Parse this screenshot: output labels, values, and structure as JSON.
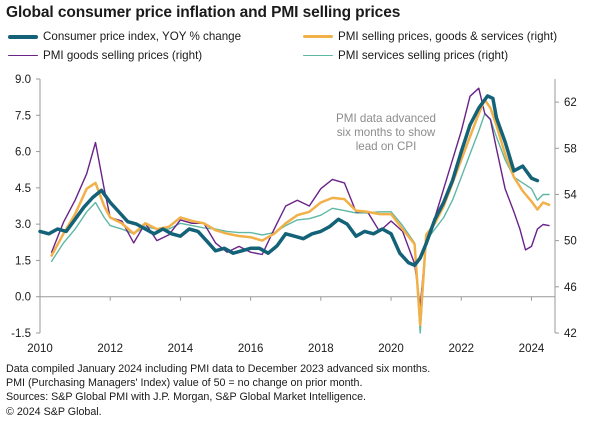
{
  "title": "Global consumer price inflation and PMI selling prices",
  "annotation": [
    "PMI data advanced",
    "six months to show",
    "lead on CPI"
  ],
  "footnotes": [
    "Data compiled January 2024 including PMI data to December 2023 advanced six months.",
    "PMI (Purchasing Managers' Index) value of 50 = no change on prior month.",
    "Sources: S&P Global PMI with J.P. Morgan, S&P Global Market Intelligence.",
    "© 2024 S&P Global."
  ],
  "colors": {
    "cpi": "#136278",
    "pmi_goods_services": "#f2b048",
    "pmi_goods": "#6a2388",
    "pmi_services": "#5fb7a5",
    "text": "#1a1a1a",
    "axis": "#9a9a9a",
    "annotation": "#8c8c8c"
  },
  "chart_data": {
    "type": "line",
    "title": "Global consumer price inflation and PMI selling prices",
    "x_ticks": [
      2010,
      2012,
      2014,
      2016,
      2018,
      2020,
      2022,
      2024
    ],
    "xlim": [
      2010.0,
      2024.67
    ],
    "y_left": {
      "lim": [
        -1.5,
        9.0
      ],
      "ticks": [
        "-1.5",
        "0.0",
        "1.5",
        "3.0",
        "4.5",
        "6.0",
        "7.5",
        "9.0"
      ]
    },
    "y_right": {
      "lim": [
        42,
        64
      ],
      "ticks": [
        "42",
        "46",
        "50",
        "54",
        "58",
        "62"
      ]
    },
    "grid": false,
    "legend_position": "top",
    "series": [
      {
        "name": "Consumer price index, YOY % change",
        "axis": "left",
        "color_key": "cpi",
        "width": 3.5,
        "points": [
          [
            2010.0,
            2.7
          ],
          [
            2010.25,
            2.6
          ],
          [
            2010.5,
            2.8
          ],
          [
            2010.75,
            2.7
          ],
          [
            2011.0,
            3.2
          ],
          [
            2011.25,
            3.7
          ],
          [
            2011.5,
            4.1
          ],
          [
            2011.75,
            4.4
          ],
          [
            2012.0,
            3.9
          ],
          [
            2012.25,
            3.5
          ],
          [
            2012.5,
            3.1
          ],
          [
            2012.75,
            3.0
          ],
          [
            2013.0,
            2.8
          ],
          [
            2013.25,
            2.6
          ],
          [
            2013.5,
            2.8
          ],
          [
            2013.75,
            2.6
          ],
          [
            2014.0,
            2.5
          ],
          [
            2014.25,
            2.8
          ],
          [
            2014.5,
            2.7
          ],
          [
            2014.75,
            2.3
          ],
          [
            2015.0,
            1.9
          ],
          [
            2015.25,
            2.0
          ],
          [
            2015.5,
            1.8
          ],
          [
            2015.75,
            1.9
          ],
          [
            2016.0,
            2.0
          ],
          [
            2016.25,
            2.0
          ],
          [
            2016.5,
            1.8
          ],
          [
            2016.75,
            2.1
          ],
          [
            2017.0,
            2.6
          ],
          [
            2017.25,
            2.5
          ],
          [
            2017.5,
            2.4
          ],
          [
            2017.75,
            2.6
          ],
          [
            2018.0,
            2.7
          ],
          [
            2018.25,
            2.9
          ],
          [
            2018.5,
            3.2
          ],
          [
            2018.75,
            3.0
          ],
          [
            2019.0,
            2.5
          ],
          [
            2019.25,
            2.7
          ],
          [
            2019.5,
            2.6
          ],
          [
            2019.75,
            2.8
          ],
          [
            2020.0,
            2.6
          ],
          [
            2020.25,
            1.8
          ],
          [
            2020.5,
            1.4
          ],
          [
            2020.67,
            1.3
          ],
          [
            2020.83,
            1.6
          ],
          [
            2021.0,
            2.2
          ],
          [
            2021.25,
            3.2
          ],
          [
            2021.5,
            3.9
          ],
          [
            2021.75,
            4.8
          ],
          [
            2022.0,
            6.0
          ],
          [
            2022.25,
            7.1
          ],
          [
            2022.5,
            7.8
          ],
          [
            2022.75,
            8.3
          ],
          [
            2022.9,
            8.2
          ],
          [
            2023.0,
            7.4
          ],
          [
            2023.25,
            6.4
          ],
          [
            2023.5,
            5.2
          ],
          [
            2023.75,
            5.4
          ],
          [
            2024.0,
            4.9
          ],
          [
            2024.17,
            4.8
          ]
        ]
      },
      {
        "name": "PMI selling prices, goods & services (right)",
        "axis": "right",
        "color_key": "pmi_goods_services",
        "width": 2.5,
        "points": [
          [
            2010.33,
            48.7
          ],
          [
            2010.67,
            50.6
          ],
          [
            2011.0,
            52.3
          ],
          [
            2011.33,
            54.5
          ],
          [
            2011.58,
            55.0
          ],
          [
            2011.83,
            53.0
          ],
          [
            2012.0,
            52.0
          ],
          [
            2012.33,
            51.5
          ],
          [
            2012.67,
            50.6
          ],
          [
            2013.0,
            51.5
          ],
          [
            2013.33,
            51.0
          ],
          [
            2013.67,
            51.2
          ],
          [
            2014.0,
            52.0
          ],
          [
            2014.33,
            51.7
          ],
          [
            2014.67,
            51.5
          ],
          [
            2015.0,
            50.9
          ],
          [
            2015.33,
            50.6
          ],
          [
            2015.67,
            50.4
          ],
          [
            2016.0,
            50.3
          ],
          [
            2016.33,
            50.0
          ],
          [
            2016.67,
            50.6
          ],
          [
            2017.0,
            51.5
          ],
          [
            2017.33,
            52.2
          ],
          [
            2017.67,
            52.5
          ],
          [
            2018.0,
            53.3
          ],
          [
            2018.33,
            53.7
          ],
          [
            2018.67,
            53.6
          ],
          [
            2019.0,
            52.6
          ],
          [
            2019.33,
            52.5
          ],
          [
            2019.67,
            52.3
          ],
          [
            2020.0,
            52.3
          ],
          [
            2020.33,
            51.0
          ],
          [
            2020.67,
            49.7
          ],
          [
            2020.83,
            42.7
          ],
          [
            2021.0,
            50.5
          ],
          [
            2021.25,
            51.5
          ],
          [
            2021.5,
            53.0
          ],
          [
            2021.75,
            55.0
          ],
          [
            2022.0,
            57.0
          ],
          [
            2022.25,
            59.0
          ],
          [
            2022.5,
            61.0
          ],
          [
            2022.67,
            62.2
          ],
          [
            2022.83,
            61.5
          ],
          [
            2023.0,
            60.0
          ],
          [
            2023.25,
            57.5
          ],
          [
            2023.5,
            55.5
          ],
          [
            2023.75,
            54.3
          ],
          [
            2024.0,
            53.4
          ],
          [
            2024.17,
            52.7
          ],
          [
            2024.33,
            53.3
          ],
          [
            2024.5,
            53.1
          ]
        ]
      },
      {
        "name": "PMI goods selling prices (right)",
        "axis": "right",
        "color_key": "pmi_goods",
        "width": 1.4,
        "points": [
          [
            2010.33,
            49.0
          ],
          [
            2010.67,
            51.6
          ],
          [
            2011.0,
            53.5
          ],
          [
            2011.33,
            55.8
          ],
          [
            2011.58,
            58.5
          ],
          [
            2011.83,
            54.5
          ],
          [
            2012.0,
            52.0
          ],
          [
            2012.33,
            51.7
          ],
          [
            2012.67,
            49.8
          ],
          [
            2013.0,
            51.5
          ],
          [
            2013.33,
            50.0
          ],
          [
            2013.67,
            50.5
          ],
          [
            2014.0,
            51.8
          ],
          [
            2014.33,
            51.5
          ],
          [
            2014.67,
            51.5
          ],
          [
            2015.0,
            49.8
          ],
          [
            2015.33,
            49.0
          ],
          [
            2015.67,
            49.5
          ],
          [
            2016.0,
            49.0
          ],
          [
            2016.33,
            48.8
          ],
          [
            2016.67,
            51.0
          ],
          [
            2017.0,
            53.0
          ],
          [
            2017.33,
            53.5
          ],
          [
            2017.67,
            53.0
          ],
          [
            2018.0,
            54.5
          ],
          [
            2018.33,
            55.3
          ],
          [
            2018.67,
            55.0
          ],
          [
            2019.0,
            52.5
          ],
          [
            2019.33,
            52.5
          ],
          [
            2019.67,
            50.8
          ],
          [
            2020.0,
            51.7
          ],
          [
            2020.33,
            50.8
          ],
          [
            2020.67,
            48.0
          ],
          [
            2020.83,
            44.3
          ],
          [
            2021.0,
            50.0
          ],
          [
            2021.25,
            52.0
          ],
          [
            2021.5,
            54.5
          ],
          [
            2021.75,
            57.0
          ],
          [
            2022.0,
            59.5
          ],
          [
            2022.25,
            62.5
          ],
          [
            2022.5,
            63.2
          ],
          [
            2022.67,
            61.0
          ],
          [
            2022.83,
            60.5
          ],
          [
            2023.0,
            58.0
          ],
          [
            2023.25,
            54.5
          ],
          [
            2023.5,
            52.5
          ],
          [
            2023.67,
            51.0
          ],
          [
            2023.83,
            49.2
          ],
          [
            2024.0,
            49.5
          ],
          [
            2024.17,
            51.0
          ],
          [
            2024.33,
            51.4
          ],
          [
            2024.5,
            51.3
          ]
        ]
      },
      {
        "name": "PMI services selling prices (right)",
        "axis": "right",
        "color_key": "pmi_services",
        "width": 1.4,
        "points": [
          [
            2010.33,
            48.2
          ],
          [
            2010.67,
            49.8
          ],
          [
            2011.0,
            51.0
          ],
          [
            2011.33,
            52.5
          ],
          [
            2011.58,
            53.3
          ],
          [
            2011.83,
            52.0
          ],
          [
            2012.0,
            51.3
          ],
          [
            2012.33,
            51.0
          ],
          [
            2012.67,
            50.6
          ],
          [
            2013.0,
            51.2
          ],
          [
            2013.33,
            51.0
          ],
          [
            2013.67,
            51.0
          ],
          [
            2014.0,
            51.5
          ],
          [
            2014.33,
            51.3
          ],
          [
            2014.67,
            51.1
          ],
          [
            2015.0,
            51.0
          ],
          [
            2015.33,
            50.8
          ],
          [
            2015.67,
            50.7
          ],
          [
            2016.0,
            50.7
          ],
          [
            2016.33,
            50.5
          ],
          [
            2016.67,
            50.7
          ],
          [
            2017.0,
            51.3
          ],
          [
            2017.33,
            51.8
          ],
          [
            2017.67,
            51.9
          ],
          [
            2018.0,
            52.2
          ],
          [
            2018.33,
            52.8
          ],
          [
            2018.67,
            52.6
          ],
          [
            2019.0,
            52.4
          ],
          [
            2019.33,
            52.4
          ],
          [
            2019.67,
            52.5
          ],
          [
            2020.0,
            52.5
          ],
          [
            2020.33,
            51.3
          ],
          [
            2020.67,
            49.8
          ],
          [
            2020.83,
            42.0
          ],
          [
            2021.0,
            50.0
          ],
          [
            2021.25,
            51.0
          ],
          [
            2021.5,
            52.0
          ],
          [
            2021.75,
            53.5
          ],
          [
            2022.0,
            55.5
          ],
          [
            2022.25,
            57.5
          ],
          [
            2022.5,
            59.5
          ],
          [
            2022.67,
            61.0
          ],
          [
            2022.83,
            60.5
          ],
          [
            2023.0,
            59.0
          ],
          [
            2023.25,
            57.0
          ],
          [
            2023.5,
            55.5
          ],
          [
            2023.75,
            55.0
          ],
          [
            2024.0,
            54.5
          ],
          [
            2024.17,
            53.5
          ],
          [
            2024.33,
            54.0
          ],
          [
            2024.5,
            54.0
          ]
        ]
      }
    ]
  }
}
